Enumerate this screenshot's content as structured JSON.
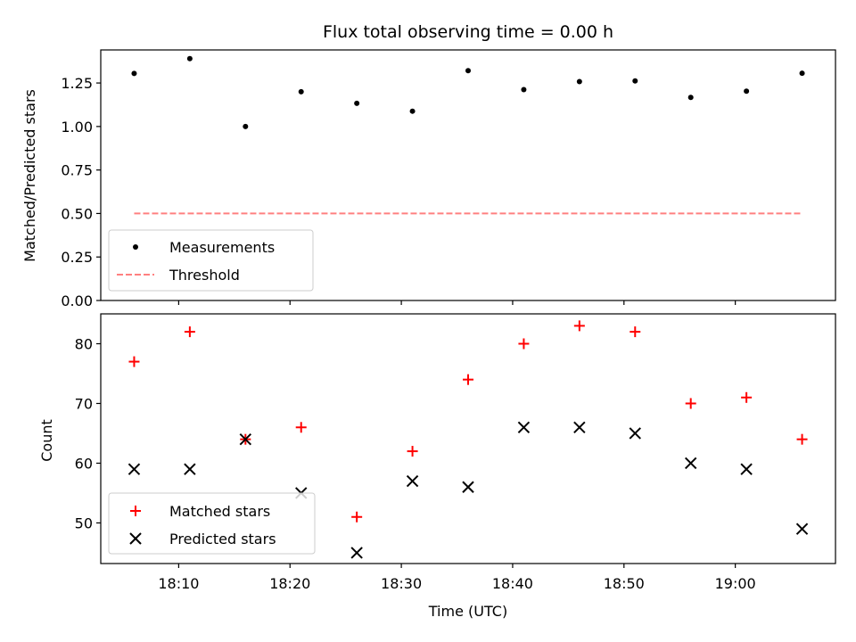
{
  "figure": {
    "title": "Flux total observing time = 0.00 h",
    "xlabel": "Time (UTC)"
  },
  "chart_data": [
    {
      "type": "scatter",
      "panel": "top",
      "ylabel": "Matched/Predicted stars",
      "x": [
        "18:06",
        "18:11",
        "18:16",
        "18:21",
        "18:26",
        "18:31",
        "18:36",
        "18:41",
        "18:46",
        "18:51",
        "18:56",
        "19:01",
        "19:06"
      ],
      "series": [
        {
          "name": "Measurements",
          "marker": "dot",
          "color": "#000000",
          "values": [
            1.305,
            1.39,
            1.0,
            1.2,
            1.133,
            1.088,
            1.321,
            1.212,
            1.258,
            1.262,
            1.167,
            1.203,
            1.306
          ]
        },
        {
          "name": "Threshold",
          "marker": "dashed-line",
          "color": "#ff8080",
          "values": [
            0.5,
            0.5,
            0.5,
            0.5,
            0.5,
            0.5,
            0.5,
            0.5,
            0.5,
            0.5,
            0.5,
            0.5,
            0.5
          ]
        }
      ],
      "ylim": [
        0,
        1.44
      ],
      "yticks": [
        "0.00",
        "0.25",
        "0.50",
        "0.75",
        "1.00",
        "1.25"
      ],
      "legend": "lower-left",
      "grid": false
    },
    {
      "type": "scatter",
      "panel": "bottom",
      "ylabel": "Count",
      "x": [
        "18:06",
        "18:11",
        "18:16",
        "18:21",
        "18:26",
        "18:31",
        "18:36",
        "18:41",
        "18:46",
        "18:51",
        "18:56",
        "19:01",
        "19:06"
      ],
      "series": [
        {
          "name": "Matched stars",
          "marker": "plus",
          "color": "#ff0000",
          "values": [
            77,
            82,
            64,
            66,
            51,
            62,
            74,
            80,
            83,
            82,
            70,
            71,
            64
          ]
        },
        {
          "name": "Predicted stars",
          "marker": "x",
          "color": "#000000",
          "values": [
            59,
            59,
            64,
            55,
            45,
            57,
            56,
            66,
            66,
            65,
            60,
            59,
            49
          ]
        }
      ],
      "ylim": [
        43.2,
        85
      ],
      "yticks": [
        "50",
        "60",
        "70",
        "80"
      ],
      "xticks": [
        "18:10",
        "18:20",
        "18:30",
        "18:40",
        "18:50",
        "19:00"
      ],
      "xlim": [
        "18:03",
        "19:09"
      ],
      "legend": "lower-left",
      "grid": false
    }
  ]
}
